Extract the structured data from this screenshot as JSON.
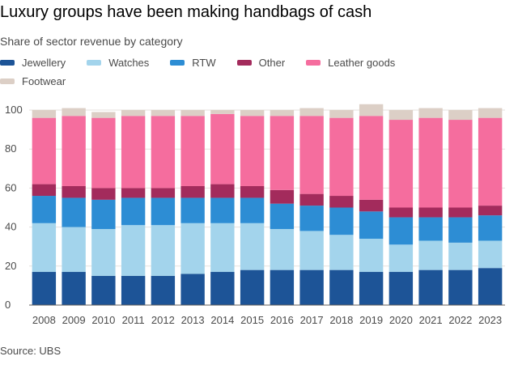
{
  "chart_data": {
    "type": "bar",
    "stacked": true,
    "title": "Luxury groups have been making handbags of cash",
    "subtitle": "Share of sector revenue by category",
    "source": "Source: UBS",
    "categories": [
      "2008",
      "2009",
      "2010",
      "2011",
      "2012",
      "2013",
      "2014",
      "2015",
      "2016",
      "2017",
      "2018",
      "2019",
      "2020",
      "2021",
      "2022",
      "2023"
    ],
    "ylim": [
      0,
      100
    ],
    "yticks": [
      0,
      20,
      40,
      60,
      80,
      100
    ],
    "grid": true,
    "legend_position": "top",
    "series": [
      {
        "name": "Jewellery",
        "color": "#1d5497",
        "values": [
          17,
          17,
          15,
          15,
          15,
          16,
          17,
          18,
          18,
          18,
          18,
          17,
          17,
          18,
          18,
          19
        ]
      },
      {
        "name": "Watches",
        "color": "#a3d4ec",
        "values": [
          25,
          23,
          24,
          26,
          26,
          26,
          25,
          24,
          21,
          20,
          18,
          17,
          14,
          15,
          14,
          14
        ]
      },
      {
        "name": "RTW",
        "color": "#2d8dd4",
        "values": [
          14,
          15,
          15,
          14,
          14,
          13,
          13,
          13,
          13,
          13,
          14,
          14,
          14,
          12,
          13,
          13
        ]
      },
      {
        "name": "Other",
        "color": "#a32b5c",
        "values": [
          6,
          6,
          6,
          5,
          5,
          6,
          7,
          6,
          7,
          6,
          6,
          6,
          5,
          5,
          5,
          5
        ]
      },
      {
        "name": "Leather goods",
        "color": "#f56d9e",
        "values": [
          34,
          36,
          36,
          37,
          37,
          36,
          36,
          36,
          38,
          40,
          40,
          43,
          45,
          46,
          45,
          45
        ]
      },
      {
        "name": "Footwear",
        "color": "#dccfc6",
        "values": [
          4,
          4,
          3,
          3,
          3,
          3,
          2,
          3,
          3,
          4,
          4,
          6,
          5,
          5,
          5,
          5
        ]
      }
    ]
  }
}
